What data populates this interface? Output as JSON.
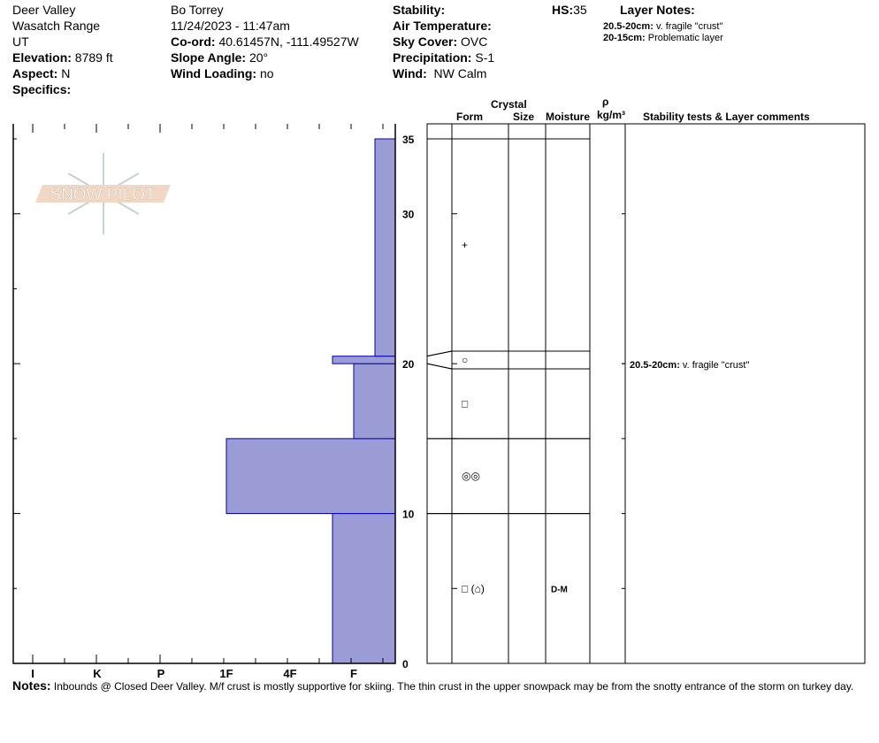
{
  "header": {
    "col1": {
      "area": "Deer Valley",
      "range": "Wasatch Range",
      "state": "UT",
      "elevation_label": "Elevation:",
      "elevation": "8789 ft",
      "aspect_label": "Aspect:",
      "aspect": "N",
      "specifics_label": "Specifics:"
    },
    "col2": {
      "observer": "Bo Torrey",
      "datetime": "11/24/2023 - 11:47am",
      "coord_label": "Co-ord:",
      "coord": "40.61457N, -111.49527W",
      "slope_label": "Slope Angle:",
      "slope": "20°",
      "wind_loading_label": "Wind Loading:",
      "wind_loading": "no"
    },
    "col3": {
      "stability_label": "Stability:",
      "air_temp_label": "Air Temperature:",
      "sky_label": "Sky Cover:",
      "sky": "OVC",
      "precip_label": "Precipitation:",
      "precip": "S-1",
      "wind_label": "Wind:",
      "wind": "NW Calm"
    },
    "hs_label": "HS:",
    "hs": "35",
    "layer_notes_label": "Layer Notes:",
    "layer_notes": [
      {
        "range": "20.5-20cm:",
        "text": "v. fragile \"crust\""
      },
      {
        "range": "20-15cm:",
        "text": "Problematic layer"
      }
    ]
  },
  "table_headers": {
    "crystal": "Crystal",
    "form": "Form",
    "size": "Size",
    "moisture": "Moisture",
    "rho": "ρ",
    "density": "kg/m³",
    "comments": "Stability tests & Layer comments"
  },
  "logo_text": "SNOW PILOT",
  "notes_label": "Notes:",
  "notes": "Inbounds @ Closed Deer Valley. M/f crust is mostly supportive for skiing. The thin crust in the upper snowpack may be from the snotty entrance of the storm on turkey day.",
  "chart_data": {
    "type": "bar",
    "title": "",
    "xlabel": "",
    "ylabel": "",
    "x_tick_labels": [
      "I",
      "K",
      "P",
      "1F",
      "4F",
      "F"
    ],
    "y_ticks": [
      0,
      10,
      20,
      30,
      35
    ],
    "ylim": [
      0,
      36
    ],
    "bar_color": "#9b9bd5",
    "bar_edge": "#0000aa",
    "layers": [
      {
        "bottom": 0,
        "top": 10,
        "hardness": "F+",
        "form": "□ (⌂)",
        "moisture": "D-M"
      },
      {
        "bottom": 10,
        "top": 15,
        "hardness": "1F",
        "form": "◎◎",
        "moisture": ""
      },
      {
        "bottom": 15,
        "top": 20,
        "hardness": "F",
        "form": "□",
        "moisture": ""
      },
      {
        "bottom": 20,
        "top": 20.5,
        "hardness": "F+",
        "form": "○",
        "moisture": "",
        "comment_range": "20.5-20cm:",
        "comment": "v. fragile \"crust\""
      },
      {
        "bottom": 20.5,
        "top": 35,
        "hardness": "F-",
        "form": "+",
        "moisture": ""
      }
    ]
  }
}
